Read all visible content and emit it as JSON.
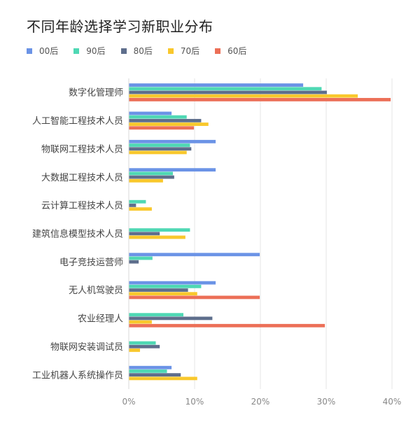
{
  "chart_data": {
    "type": "bar",
    "orientation": "horizontal",
    "title": "不同年龄选择学习新职业分布",
    "legend_position": "top-left",
    "grid": true,
    "xlim": [
      0,
      40
    ],
    "ticks": [
      "0%",
      "10%",
      "20%",
      "30%",
      "40%"
    ],
    "categories": [
      "数字化管理师",
      "人工智能工程技术人员",
      "物联网工程技术人员",
      "大数据工程技术人员",
      "云计算工程技术人员",
      "建筑信息模型技术人员",
      "电子竞技运营师",
      "无人机驾驶员",
      "农业经理人",
      "物联网安装调试员",
      "工业机器人系统操作员"
    ],
    "series": [
      {
        "name": "00后",
        "color": "#6B93E6",
        "values": [
          26.5,
          6.5,
          13.2,
          13.2,
          0,
          0,
          19.9,
          13.2,
          0,
          0,
          6.5
        ]
      },
      {
        "name": "90后",
        "color": "#4FD8B4",
        "values": [
          29.3,
          8.8,
          9.3,
          6.7,
          2.6,
          9.3,
          3.6,
          11.0,
          8.3,
          4.1,
          5.8
        ]
      },
      {
        "name": "80后",
        "color": "#5E6E8C",
        "values": [
          30.1,
          11.0,
          9.5,
          6.9,
          1.1,
          4.7,
          1.5,
          9.0,
          12.7,
          4.7,
          7.9
        ]
      },
      {
        "name": "70后",
        "color": "#F9C82C",
        "values": [
          34.8,
          12.1,
          8.8,
          5.2,
          3.5,
          8.6,
          0,
          10.4,
          3.5,
          1.7,
          10.4
        ]
      },
      {
        "name": "60后",
        "color": "#EC6F57",
        "values": [
          39.8,
          9.9,
          0,
          0,
          0,
          0,
          0,
          19.9,
          29.8,
          0,
          0
        ]
      }
    ]
  }
}
